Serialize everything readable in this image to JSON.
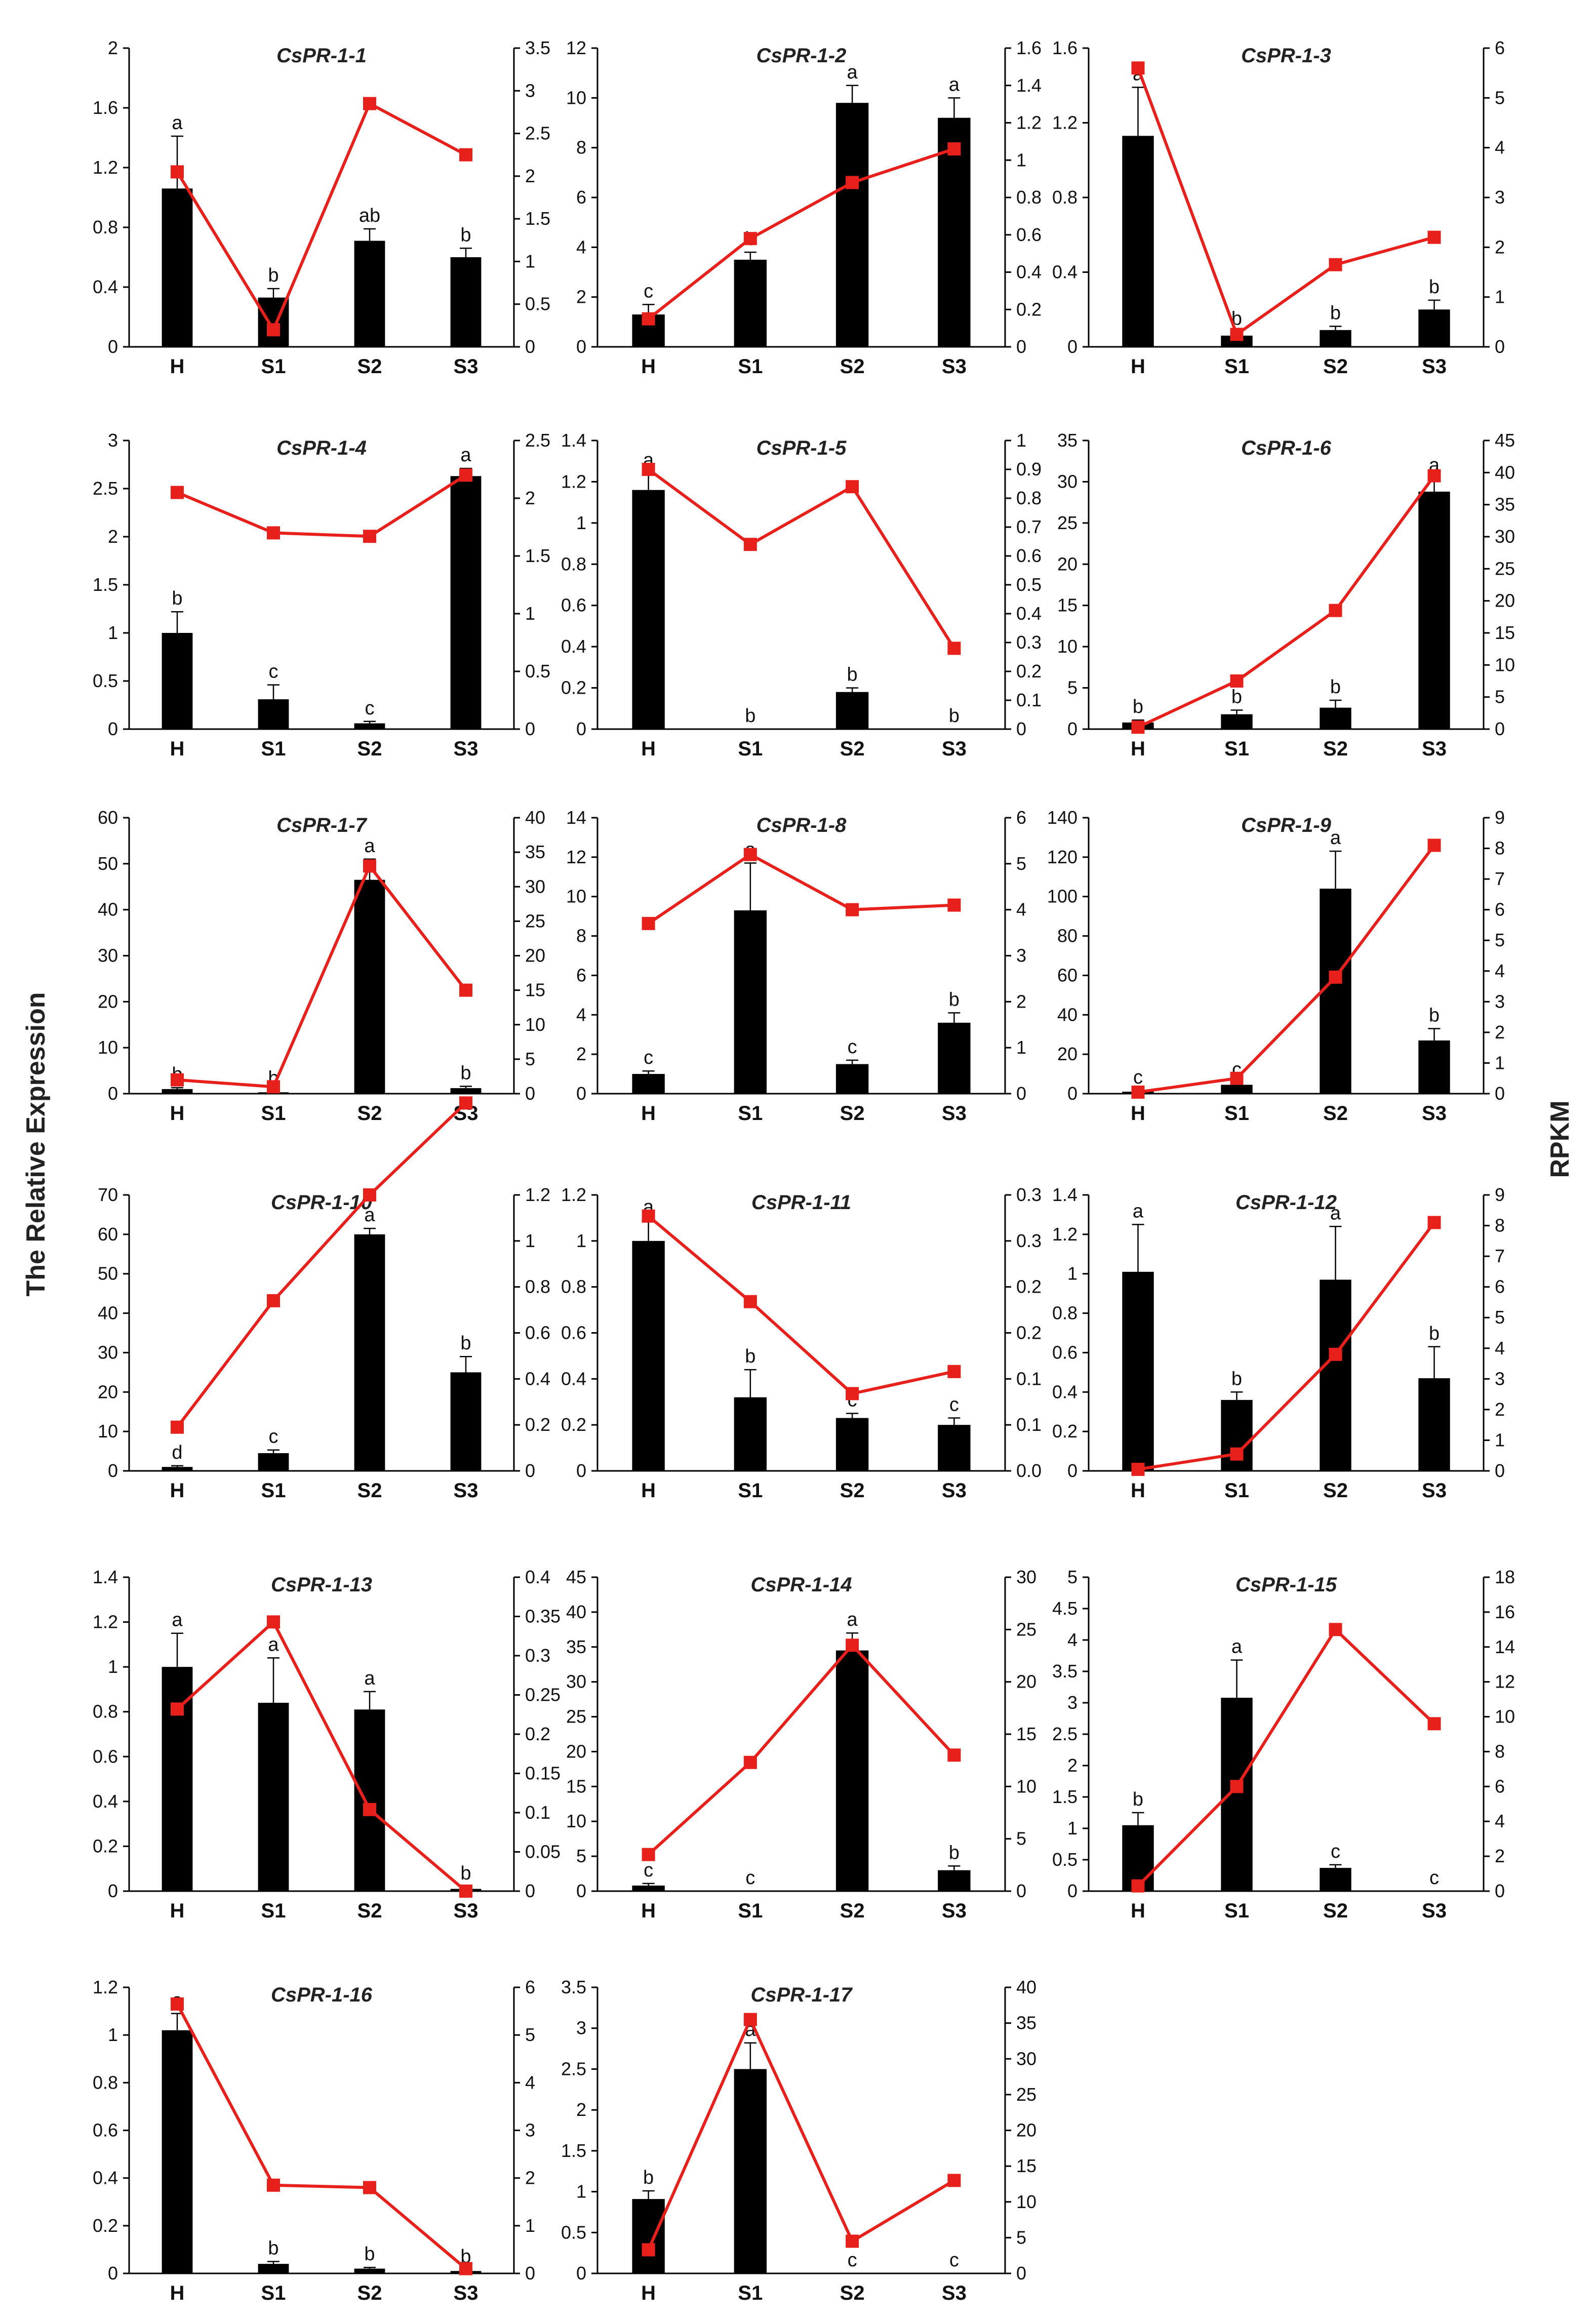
{
  "figure": {
    "left_axis_label": "The Relative Expression",
    "right_axis_label": "RPKM",
    "bar_color": "#000000",
    "line_color": "#e8201c"
  },
  "chart_data": [
    {
      "type": "bar+line",
      "title": "CsPR-1-1",
      "categories": [
        "H",
        "S1",
        "S2",
        "S3"
      ],
      "ylim_left": [
        0,
        2
      ],
      "yticks_left": [
        "0",
        "0.4",
        "0.8",
        "1.2",
        "1.6",
        "2"
      ],
      "ylim_right": [
        0,
        3.5
      ],
      "yticks_right": [
        "0",
        "0.5",
        "1",
        "1.5",
        "2",
        "2.5",
        "3",
        "3.5"
      ],
      "bars": [
        1.06,
        0.33,
        0.71,
        0.6
      ],
      "errors": [
        0.35,
        0.06,
        0.08,
        0.06
      ],
      "significance": [
        "a",
        "b",
        "ab",
        "b"
      ],
      "line": [
        2.05,
        0.2,
        2.85,
        2.25
      ]
    },
    {
      "type": "bar+line",
      "title": "CsPR-1-2",
      "categories": [
        "H",
        "S1",
        "S2",
        "S3"
      ],
      "ylim_left": [
        0,
        12
      ],
      "yticks_left": [
        "0",
        "2",
        "4",
        "6",
        "8",
        "10",
        "12"
      ],
      "ylim_right": [
        0,
        1.6
      ],
      "yticks_right": [
        "0",
        "0.2",
        "0.4",
        "0.6",
        "0.8",
        "1",
        "1.2",
        "1.4",
        "1.6"
      ],
      "bars": [
        1.3,
        3.5,
        9.8,
        9.2
      ],
      "errors": [
        0.4,
        0.3,
        0.7,
        0.8
      ],
      "significance": [
        "c",
        "b",
        "a",
        "a"
      ],
      "line": [
        0.15,
        0.58,
        0.88,
        1.06
      ]
    },
    {
      "type": "bar+line",
      "title": "CsPR-1-3",
      "categories": [
        "H",
        "S1",
        "S2",
        "S3"
      ],
      "ylim_left": [
        0,
        1.6
      ],
      "yticks_left": [
        "0",
        "0.4",
        "0.8",
        "1.2",
        "1.6"
      ],
      "ylim_right": [
        0,
        6
      ],
      "yticks_right": [
        "0",
        "1",
        "2",
        "3",
        "4",
        "5",
        "6"
      ],
      "bars": [
        1.13,
        0.06,
        0.09,
        0.2
      ],
      "errors": [
        0.26,
        0.02,
        0.02,
        0.05
      ],
      "significance": [
        "a",
        "b",
        "b",
        "b"
      ],
      "line": [
        5.6,
        0.25,
        1.65,
        2.2
      ]
    },
    {
      "type": "bar+line",
      "title": "CsPR-1-4",
      "categories": [
        "H",
        "S1",
        "S2",
        "S3"
      ],
      "ylim_left": [
        0,
        3
      ],
      "yticks_left": [
        "0",
        "0.5",
        "1",
        "1.5",
        "2",
        "2.5",
        "3"
      ],
      "ylim_right": [
        0,
        2.5
      ],
      "yticks_right": [
        "0",
        "0.5",
        "1",
        "1.5",
        "2",
        "2.5"
      ],
      "bars": [
        1.0,
        0.31,
        0.06,
        2.63
      ],
      "errors": [
        0.22,
        0.15,
        0.02,
        0.08
      ],
      "significance": [
        "b",
        "c",
        "c",
        "a"
      ],
      "line": [
        2.05,
        1.7,
        1.67,
        2.2
      ]
    },
    {
      "type": "bar+line",
      "title": "CsPR-1-5",
      "categories": [
        "H",
        "S1",
        "S2",
        "S3"
      ],
      "ylim_left": [
        0,
        1.4
      ],
      "yticks_left": [
        "0",
        "0.2",
        "0.4",
        "0.6",
        "0.8",
        "1",
        "1.2",
        "1.4"
      ],
      "ylim_right": [
        0,
        1
      ],
      "yticks_right": [
        "0",
        "0.1",
        "0.2",
        "0.3",
        "0.4",
        "0.5",
        "0.6",
        "0.7",
        "0.8",
        "0.9",
        "1"
      ],
      "bars": [
        1.16,
        0,
        0.18,
        0
      ],
      "errors": [
        0.08,
        0,
        0.02,
        0
      ],
      "significance": [
        "a",
        "b",
        "b",
        "b"
      ],
      "line": [
        0.9,
        0.64,
        0.84,
        0.28
      ]
    },
    {
      "type": "bar+line",
      "title": "CsPR-1-6",
      "categories": [
        "H",
        "S1",
        "S2",
        "S3"
      ],
      "ylim_left": [
        0,
        35
      ],
      "yticks_left": [
        "0",
        "5",
        "10",
        "15",
        "20",
        "25",
        "30",
        "35"
      ],
      "ylim_right": [
        0,
        45
      ],
      "yticks_right": [
        "0",
        "5",
        "10",
        "15",
        "20",
        "25",
        "30",
        "35",
        "40",
        "45"
      ],
      "bars": [
        0.8,
        1.8,
        2.6,
        28.8
      ],
      "errors": [
        0.3,
        0.5,
        0.9,
        1.6
      ],
      "significance": [
        "b",
        "b",
        "b",
        "a"
      ],
      "line": [
        0.3,
        7.5,
        18.5,
        39.5
      ]
    },
    {
      "type": "bar+line",
      "title": "CsPR-1-7",
      "categories": [
        "H",
        "S1",
        "S2",
        "S3"
      ],
      "ylim_left": [
        0,
        60
      ],
      "yticks_left": [
        "0",
        "10",
        "20",
        "30",
        "40",
        "50",
        "60"
      ],
      "ylim_right": [
        0,
        40
      ],
      "yticks_right": [
        "0",
        "5",
        "10",
        "15",
        "20",
        "25",
        "30",
        "35",
        "40"
      ],
      "bars": [
        1.0,
        0.3,
        46.5,
        1.2
      ],
      "errors": [
        0.3,
        0.2,
        4.5,
        0.4
      ],
      "significance": [
        "b",
        "b",
        "a",
        "b"
      ],
      "line": [
        2.0,
        1.0,
        33.0,
        15.0
      ]
    },
    {
      "type": "bar+line",
      "title": "CsPR-1-8",
      "categories": [
        "H",
        "S1",
        "S2",
        "S3"
      ],
      "ylim_left": [
        0,
        14
      ],
      "yticks_left": [
        "0",
        "2",
        "4",
        "6",
        "8",
        "10",
        "12",
        "14"
      ],
      "ylim_right": [
        0,
        6
      ],
      "yticks_right": [
        "0",
        "1",
        "2",
        "3",
        "4",
        "5",
        "6"
      ],
      "bars": [
        1.0,
        9.3,
        1.5,
        3.6
      ],
      "errors": [
        0.15,
        2.4,
        0.2,
        0.5
      ],
      "significance": [
        "c",
        "a",
        "c",
        "b"
      ],
      "line": [
        3.7,
        5.2,
        4.0,
        4.1
      ]
    },
    {
      "type": "bar+line",
      "title": "CsPR-1-9",
      "categories": [
        "H",
        "S1",
        "S2",
        "S3"
      ],
      "ylim_left": [
        0,
        140
      ],
      "yticks_left": [
        "0",
        "20",
        "40",
        "60",
        "80",
        "100",
        "120",
        "140"
      ],
      "ylim_right": [
        0,
        9
      ],
      "yticks_right": [
        "0",
        "1",
        "2",
        "3",
        "4",
        "5",
        "6",
        "7",
        "8",
        "9"
      ],
      "bars": [
        1.0,
        4.5,
        104,
        27
      ],
      "errors": [
        0.5,
        1.0,
        19,
        6
      ],
      "significance": [
        "c",
        "c",
        "a",
        "b"
      ],
      "line": [
        0.05,
        0.5,
        3.8,
        8.1
      ]
    },
    {
      "type": "bar+line",
      "title": "CsPR-1-10",
      "categories": [
        "H",
        "S1",
        "S2",
        "S3"
      ],
      "ylim_left": [
        0,
        70
      ],
      "yticks_left": [
        "0",
        "10",
        "20",
        "30",
        "40",
        "50",
        "60",
        "70"
      ],
      "ylim_right": [
        0,
        1.2
      ],
      "yticks_right": [
        "0",
        "0.2",
        "0.4",
        "0.6",
        "0.8",
        "1",
        "1.2"
      ],
      "bars": [
        1.0,
        4.5,
        60,
        25
      ],
      "errors": [
        0.3,
        0.8,
        1.5,
        4
      ],
      "significance": [
        "d",
        "c",
        "a",
        "b"
      ],
      "line": [
        0.19,
        0.74,
        1.2,
        1.6
      ]
    },
    {
      "type": "bar+line",
      "title": "CsPR-1-11",
      "categories": [
        "H",
        "S1",
        "S2",
        "S3"
      ],
      "ylim_left": [
        0,
        1.2
      ],
      "yticks_left": [
        "0",
        "0.2",
        "0.4",
        "0.6",
        "0.8",
        "1",
        "1.2"
      ],
      "ylim_right": [
        0,
        0.3
      ],
      "yticks_right": [
        "0.0",
        "0.1",
        "0.1",
        "0.2",
        "0.2",
        "0.3",
        "0.3"
      ],
      "bars": [
        1.0,
        0.32,
        0.23,
        0.2
      ],
      "errors": [
        0.09,
        0.12,
        0.02,
        0.03
      ],
      "significance": [
        "a",
        "b",
        "c",
        "c"
      ],
      "line": [
        0.277,
        0.184,
        0.084,
        0.108
      ]
    },
    {
      "type": "bar+line",
      "title": "CsPR-1-12",
      "categories": [
        "H",
        "S1",
        "S2",
        "S3"
      ],
      "ylim_left": [
        0,
        1.4
      ],
      "yticks_left": [
        "0",
        "0.2",
        "0.4",
        "0.6",
        "0.8",
        "1",
        "1.2",
        "1.4"
      ],
      "ylim_right": [
        0,
        9
      ],
      "yticks_right": [
        "0",
        "1",
        "2",
        "3",
        "4",
        "5",
        "6",
        "7",
        "8",
        "9"
      ],
      "bars": [
        1.01,
        0.36,
        0.97,
        0.47
      ],
      "errors": [
        0.24,
        0.04,
        0.27,
        0.16
      ],
      "significance": [
        "a",
        "b",
        "a",
        "b"
      ],
      "line": [
        0.05,
        0.55,
        3.8,
        8.1
      ]
    },
    {
      "type": "bar+line",
      "title": "CsPR-1-13",
      "categories": [
        "H",
        "S1",
        "S2",
        "S3"
      ],
      "ylim_left": [
        0,
        1.4
      ],
      "yticks_left": [
        "0",
        "0.2",
        "0.4",
        "0.6",
        "0.8",
        "1",
        "1.2",
        "1.4"
      ],
      "ylim_right": [
        0,
        0.4
      ],
      "yticks_right": [
        "0",
        "0.05",
        "0.1",
        "0.15",
        "0.2",
        "0.25",
        "0.3",
        "0.35",
        "0.4"
      ],
      "bars": [
        1.0,
        0.84,
        0.81,
        0.01
      ],
      "errors": [
        0.15,
        0.2,
        0.08,
        0.01
      ],
      "significance": [
        "a",
        "a",
        "a",
        "b"
      ],
      "line": [
        0.232,
        0.343,
        0.104,
        0.0
      ]
    },
    {
      "type": "bar+line",
      "title": "CsPR-1-14",
      "categories": [
        "H",
        "S1",
        "S2",
        "S3"
      ],
      "ylim_left": [
        0,
        45
      ],
      "yticks_left": [
        "0",
        "5",
        "10",
        "15",
        "20",
        "25",
        "30",
        "35",
        "40",
        "45"
      ],
      "ylim_right": [
        0,
        30
      ],
      "yticks_right": [
        "0",
        "5",
        "10",
        "15",
        "20",
        "25",
        "30"
      ],
      "bars": [
        0.8,
        0,
        34.5,
        3.0
      ],
      "errors": [
        0.3,
        0,
        2.5,
        0.6
      ],
      "significance": [
        "c",
        "c",
        "a",
        "b"
      ],
      "line": [
        3.5,
        12.3,
        23.5,
        13.0
      ]
    },
    {
      "type": "bar+line",
      "title": "CsPR-1-15",
      "categories": [
        "H",
        "S1",
        "S2",
        "S3"
      ],
      "ylim_left": [
        0,
        5
      ],
      "yticks_left": [
        "0",
        "0.5",
        "1",
        "1.5",
        "2",
        "2.5",
        "3",
        "3.5",
        "4",
        "4.5",
        "5"
      ],
      "ylim_right": [
        0,
        18
      ],
      "yticks_right": [
        "0",
        "2",
        "4",
        "6",
        "8",
        "10",
        "12",
        "14",
        "16",
        "18"
      ],
      "bars": [
        1.05,
        3.08,
        0.37,
        0
      ],
      "errors": [
        0.2,
        0.6,
        0.05,
        0
      ],
      "significance": [
        "b",
        "a",
        "c",
        "c"
      ],
      "line": [
        0.3,
        6.0,
        15.0,
        9.6
      ]
    },
    {
      "type": "bar+line",
      "title": "CsPR-1-16",
      "categories": [
        "H",
        "S1",
        "S2",
        "S3"
      ],
      "ylim_left": [
        0,
        1.2
      ],
      "yticks_left": [
        "0",
        "0.2",
        "0.4",
        "0.6",
        "0.8",
        "1",
        "1.2"
      ],
      "ylim_right": [
        0,
        6
      ],
      "yticks_right": [
        "0",
        "1",
        "2",
        "3",
        "4",
        "5",
        "6"
      ],
      "bars": [
        1.02,
        0.04,
        0.02,
        0.01
      ],
      "errors": [
        0.07,
        0.01,
        0.005,
        0.005
      ],
      "significance": [
        "a",
        "b",
        "b",
        "b"
      ],
      "line": [
        5.65,
        1.85,
        1.8,
        0.1
      ]
    },
    {
      "type": "bar+line",
      "title": "CsPR-1-17",
      "categories": [
        "H",
        "S1",
        "S2",
        "S3"
      ],
      "ylim_left": [
        0,
        3.5
      ],
      "yticks_left": [
        "0",
        "0.5",
        "1",
        "1.5",
        "2",
        "2.5",
        "3",
        "3.5"
      ],
      "ylim_right": [
        0,
        40
      ],
      "yticks_right": [
        "0",
        "5",
        "10",
        "15",
        "20",
        "25",
        "30",
        "35",
        "40"
      ],
      "bars": [
        0.91,
        2.5,
        0,
        0
      ],
      "errors": [
        0.1,
        0.32,
        0,
        0
      ],
      "significance": [
        "b",
        "a",
        "c",
        "c"
      ],
      "line": [
        3.3,
        35.5,
        4.5,
        13.0
      ]
    }
  ]
}
